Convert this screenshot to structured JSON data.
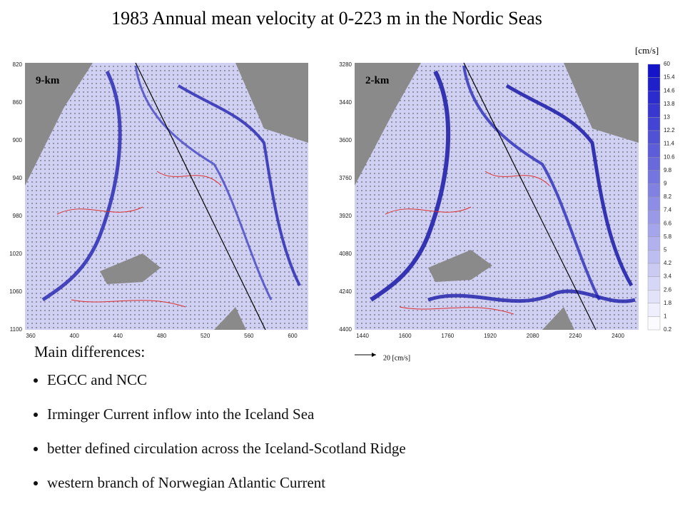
{
  "title": "1983 Annual mean velocity at 0-223 m in the Nordic Seas",
  "panels": [
    {
      "label": "9-km",
      "yticks": [
        820,
        860,
        900,
        940,
        980,
        1020,
        1060,
        1100
      ],
      "xticks": [
        360,
        400,
        440,
        480,
        520,
        560,
        600
      ]
    },
    {
      "label": "2-km",
      "yticks": [
        3280,
        3440,
        3600,
        3760,
        3920,
        4080,
        4240,
        4400
      ],
      "xticks": [
        1440,
        1600,
        1760,
        1920,
        2080,
        2240,
        2400
      ]
    }
  ],
  "colorbar": {
    "unit": "[cm/s]",
    "labels": [
      "60",
      "15.4",
      "14.6",
      "13.8",
      "13",
      "12.2",
      "11.4",
      "10.6",
      "9.8",
      "9",
      "8.2",
      "7.4",
      "6.6",
      "5.8",
      "5",
      "4.2",
      "3.4",
      "2.6",
      "1.8",
      "1",
      "0.2"
    ]
  },
  "reference_vector": "20 [cm/s]",
  "notes": {
    "heading": "Main differences:",
    "items": [
      "EGCC and NCC",
      "Irminger Current inflow into the Iceland Sea",
      "better defined circulation across the Iceland-Scotland Ridge",
      "western branch of Norwegian Atlantic Current"
    ]
  }
}
